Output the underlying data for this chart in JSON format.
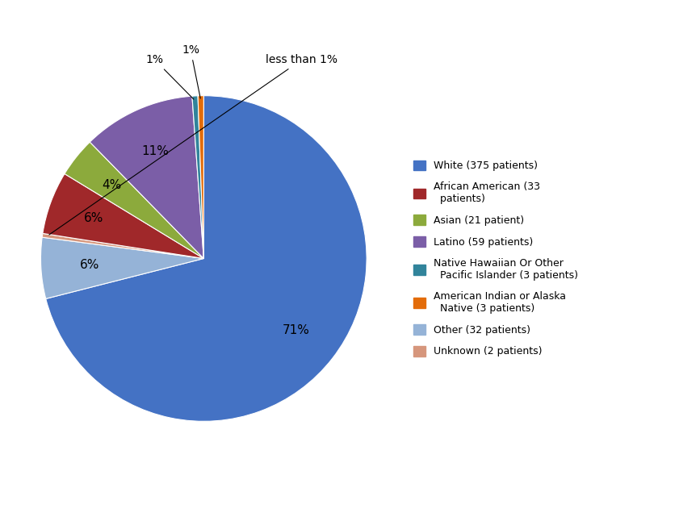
{
  "labels": [
    "White (375 patients)",
    "African American (33\n  patients)",
    "Asian (21 patient)",
    "Latino (59 patients)",
    "Native Hawaiian Or Other\n  Pacific Islander (3 patients)",
    "American Indian or Alaska\n  Native (3 patients)",
    "Other (32 patients)",
    "Unknown (2 patients)"
  ],
  "legend_labels": [
    "White (375 patients)",
    "African American (33\n  patients)",
    "Asian (21 patient)",
    "Latino (59 patients)",
    "Native Hawaiian Or Other\n  Pacific Islander (3 patients)",
    "American Indian or Alaska\n  Native (3 patients)",
    "Other (32 patients)",
    "Unknown (2 patients)"
  ],
  "values": [
    375,
    33,
    21,
    59,
    3,
    3,
    32,
    2
  ],
  "colors": [
    "#4472C4",
    "#A0282A",
    "#8CAA3C",
    "#7B5EA7",
    "#31849B",
    "#E36C09",
    "#95B3D7",
    "#D6967C"
  ],
  "pct_labels": [
    "71%",
    "6%",
    "4%",
    "11%",
    "1%",
    "1%",
    "6%",
    "less than 1%"
  ],
  "background_color": "#FFFFFF"
}
